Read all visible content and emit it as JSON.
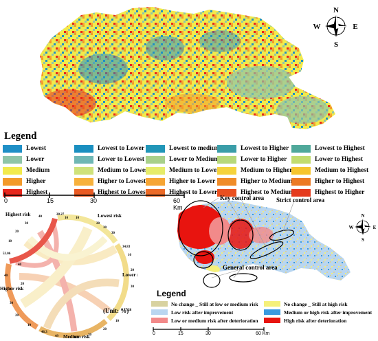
{
  "legend_title": "Legend",
  "legend_items": [
    {
      "label": "Lowest",
      "color": "#1f8fc6"
    },
    {
      "label": "Lowest to Lower",
      "color": "#1a8fc0"
    },
    {
      "label": "Lowest to medium",
      "color": "#2196b8"
    },
    {
      "label": "Lowest to Higher",
      "color": "#3a9da8"
    },
    {
      "label": "Lowest to Highest",
      "color": "#4fa89a"
    },
    {
      "label": "Lower",
      "color": "#8fc5a8"
    },
    {
      "label": "Lower to Lowest",
      "color": "#6fb7b4"
    },
    {
      "label": "Lower to Medium",
      "color": "#a8d08a"
    },
    {
      "label": "Lower to Higher",
      "color": "#b7d87a"
    },
    {
      "label": "Lower to Highest",
      "color": "#c2dc6e"
    },
    {
      "label": "Medium",
      "color": "#f2ea4c"
    },
    {
      "label": "Medium to Lowest",
      "color": "#cfe27a"
    },
    {
      "label": "Medium to Lower",
      "color": "#e6ec6a"
    },
    {
      "label": "Medium to Higher",
      "color": "#f5d33c"
    },
    {
      "label": "Medium to Highest",
      "color": "#f6c52e"
    },
    {
      "label": "Higher",
      "color": "#f39a2a"
    },
    {
      "label": "Higher to Lowest",
      "color": "#f7b13c"
    },
    {
      "label": "Higher to Lower",
      "color": "#f6a534"
    },
    {
      "label": "Higher to Medium",
      "color": "#f08c28"
    },
    {
      "label": "Higher to Highest",
      "color": "#ec7a24"
    },
    {
      "label": "Highest",
      "color": "#e8261c"
    },
    {
      "label": "Highest to Lowest",
      "color": "#ea5a22"
    },
    {
      "label": "Highest to Lower",
      "color": "#ec6a26"
    },
    {
      "label": "Highest to Medium",
      "color": "#e9501f"
    },
    {
      "label": "Highest to Higher",
      "color": "#e53a1d"
    }
  ],
  "scale_top": {
    "ticks": [
      "0",
      "15",
      "30",
      "60 Km"
    ]
  },
  "compass": {
    "n": "N",
    "s": "S",
    "e": "E",
    "w": "W"
  },
  "chord": {
    "unit": "(Unit: %)",
    "groups": [
      {
        "name": "Highest risk",
        "color": "#e8564a"
      },
      {
        "name": "Lowest risk",
        "color": "#f3e69a"
      },
      {
        "name": "Lower risk",
        "color": "#f2dc8a"
      },
      {
        "name": "Medium risk",
        "color": "#e8b464"
      },
      {
        "name": "Higher risk",
        "color": "#ef9a5a"
      }
    ],
    "numbers": [
      "28.27",
      "10",
      "20",
      "30",
      "34.83",
      "10",
      "20",
      "30",
      "37.58",
      "10",
      "20",
      "30",
      "40",
      "46.3",
      "10",
      "20",
      "30",
      "40",
      "53.06",
      "10",
      "20",
      "30",
      "40",
      "10",
      "30",
      "40",
      "49",
      "20"
    ]
  },
  "bottom_map": {
    "callouts": [
      "Key control area",
      "Strict control area",
      "General control area"
    ],
    "compass": {
      "n": "N",
      "s": "S",
      "e": "E",
      "w": "W"
    }
  },
  "legend2_title": "Legend",
  "legend2_items": [
    {
      "label": "No change _ Still at low or medium risk",
      "color": "#d8d2a0"
    },
    {
      "label": "No change _ Still at high risk",
      "color": "#f5f07a"
    },
    {
      "label": "Low risk after improvement",
      "color": "#b9d6f0"
    },
    {
      "label": "Medium or high risk after improvement",
      "color": "#3a9ae0"
    },
    {
      "label": "Low or medium risk after deterioration",
      "color": "#f28a8a"
    },
    {
      "label": "High risk after deterioration",
      "color": "#e8140f"
    }
  ],
  "scale_bottom": {
    "ticks": [
      "0",
      "15",
      "30",
      "60 Km"
    ]
  }
}
